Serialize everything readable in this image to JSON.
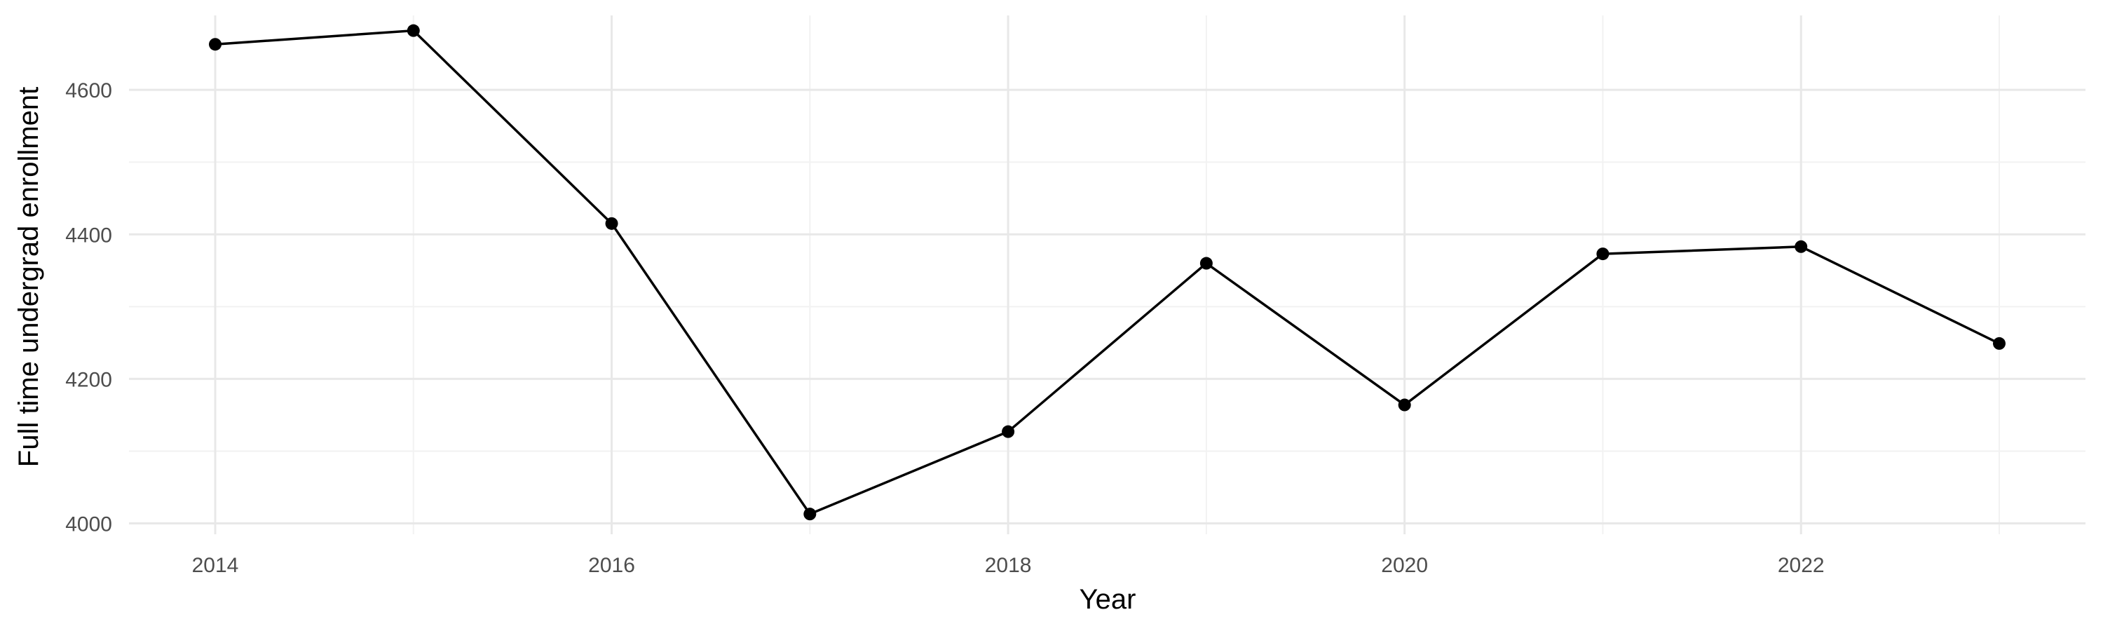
{
  "chart_data": {
    "type": "line",
    "title": "",
    "xlabel": "Year",
    "ylabel": "Full time undergrad enrollment",
    "x": [
      2014,
      2015,
      2016,
      2017,
      2018,
      2019,
      2020,
      2021,
      2022,
      2023
    ],
    "series": [
      {
        "values": [
          4663,
          4682,
          4415,
          4013,
          4127,
          4360,
          4164,
          4373,
          4383,
          4249
        ],
        "color": "#000000"
      }
    ],
    "xlim": [
      2013.565,
      2023.435
    ],
    "ylim": [
      3985,
      4703
    ],
    "x_ticks": [
      2014,
      2016,
      2018,
      2020,
      2022
    ],
    "x_tick_labels": [
      "2014",
      "2016",
      "2018",
      "2020",
      "2022"
    ],
    "x_minor_ticks": [
      2015,
      2017,
      2019,
      2021,
      2023
    ],
    "y_ticks": [
      4000,
      4200,
      4400,
      4600
    ],
    "y_tick_labels": [
      "4000",
      "4200",
      "4400",
      "4600"
    ],
    "y_minor_ticks": [
      4100,
      4300,
      4500
    ],
    "grid": true,
    "legend": "none"
  }
}
